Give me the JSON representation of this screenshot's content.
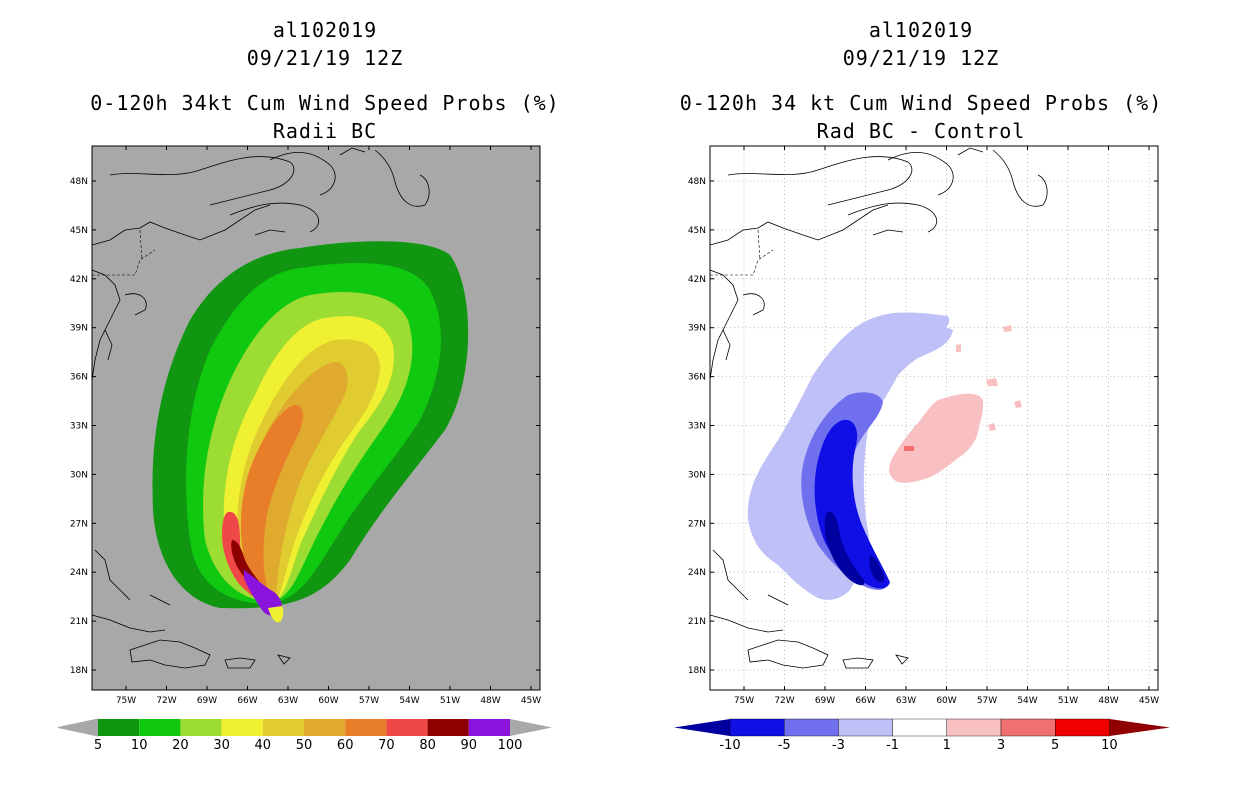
{
  "left_panel": {
    "storm_id": "al102019",
    "datetime": "09/21/19 12Z",
    "title": "0-120h 34kt Cum Wind Speed Probs (%)",
    "subtitle": "Radii BC",
    "background_color": "#a8a8a8",
    "colorbar": {
      "labels": [
        "5",
        "10",
        "20",
        "30",
        "40",
        "50",
        "60",
        "70",
        "80",
        "90",
        "100"
      ],
      "colors": [
        "#119611",
        "#10c810",
        "#9ddc32",
        "#f0f032",
        "#e0cc30",
        "#e0aa2e",
        "#e87e2a",
        "#f04848",
        "#8c0000",
        "#8a14dc"
      ]
    }
  },
  "right_panel": {
    "storm_id": "al102019",
    "datetime": "09/21/19 12Z",
    "title": "0-120h 34 kt Cum Wind Speed Probs (%)",
    "subtitle": "Rad BC - Control",
    "background_color": "#ffffff",
    "colorbar": {
      "labels": [
        "-10",
        "-5",
        "-3",
        "-1",
        "1",
        "3",
        "5",
        "10"
      ],
      "colors": [
        "#0000a0",
        "#1010e6",
        "#7070ee",
        "#c0c0f8",
        "#ffffff",
        "#f8c0c0",
        "#f07070",
        "#f00000",
        "#900000"
      ]
    }
  },
  "axes": {
    "lon_ticks": [
      "75W",
      "72W",
      "69W",
      "66W",
      "63W",
      "60W",
      "57W",
      "54W",
      "51W",
      "48W",
      "45W"
    ],
    "lat_ticks": [
      "48N",
      "45N",
      "42N",
      "39N",
      "36N",
      "33N",
      "30N",
      "27N",
      "24N",
      "21N",
      "18N"
    ]
  },
  "chart_data": {
    "type": "heatmap",
    "region": {
      "lon_range": [
        -77,
        -44
      ],
      "lat_range": [
        16,
        50
      ]
    },
    "panels": [
      {
        "name": "Radii BC",
        "units": "%",
        "levels": [
          5,
          10,
          20,
          30,
          40,
          50,
          60,
          70,
          80,
          90,
          100
        ],
        "feature": "elongated probability swath from ~21N 63W extending NNE to ~44N 50W, maximum (>90%) near 22N 63W"
      },
      {
        "name": "Rad BC - Control",
        "units": "%",
        "levels": [
          -10,
          -5,
          -3,
          -1,
          1,
          3,
          5,
          10
        ],
        "feature": "negative differences west of track (minimum < -10 near 24-26N 65W), weak positive differences near 31-34N 58W"
      }
    ]
  }
}
